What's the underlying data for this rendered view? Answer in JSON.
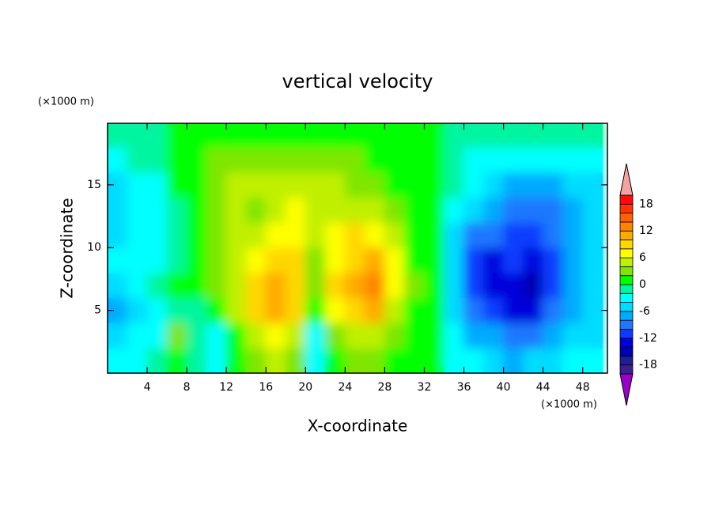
{
  "chart_data": {
    "type": "contour",
    "title": "vertical velocity",
    "x_label": "X-coordinate",
    "y_label": "Z-coordinate",
    "x_unit": "(×1000 m)",
    "y_unit": "(×1000 m)",
    "xlim": [
      0,
      50.5
    ],
    "ylim": [
      0,
      19.9
    ],
    "xticks": [
      4,
      8,
      12,
      16,
      20,
      24,
      28,
      32,
      36,
      40,
      44,
      48
    ],
    "yticks": [
      5,
      10,
      15
    ],
    "x": [
      1,
      3,
      5,
      7,
      9,
      11,
      13,
      15,
      17,
      19,
      21,
      23,
      25,
      27,
      29,
      31,
      33,
      35,
      37,
      39,
      41,
      43,
      45,
      47,
      49
    ],
    "y": [
      1,
      3,
      5,
      7,
      9,
      11,
      13,
      15,
      17,
      19
    ],
    "z": [
      [
        -3,
        -3,
        -1,
        1,
        -1,
        -3,
        1,
        3,
        5,
        3,
        -3,
        1,
        3,
        3,
        1,
        1,
        1,
        -3,
        -3,
        -5,
        -7,
        -5,
        -5,
        -3,
        -3
      ],
      [
        -5,
        -4,
        -3,
        3,
        -1,
        -3,
        1,
        5,
        7,
        5,
        -3,
        3,
        5,
        5,
        3,
        1,
        0,
        -3,
        -7,
        -7,
        -9,
        -9,
        -7,
        -5,
        -5
      ],
      [
        -7,
        -5,
        -3,
        -1,
        -1,
        1,
        5,
        9,
        11,
        9,
        1,
        7,
        9,
        11,
        5,
        1,
        0,
        -5,
        -9,
        -11,
        -13,
        -13,
        -9,
        -7,
        -5
      ],
      [
        -5,
        -3,
        -1,
        0,
        1,
        3,
        5,
        9,
        11,
        9,
        3,
        9,
        11,
        13,
        7,
        3,
        0,
        -5,
        -11,
        -13,
        -13,
        -15,
        -11,
        -7,
        -5
      ],
      [
        -3,
        -3,
        -3,
        -1,
        1,
        3,
        5,
        7,
        9,
        9,
        3,
        7,
        9,
        11,
        7,
        1,
        0,
        -5,
        -11,
        -13,
        -11,
        -13,
        -11,
        -7,
        -5
      ],
      [
        -5,
        -3,
        -3,
        -1,
        1,
        3,
        5,
        5,
        7,
        7,
        5,
        7,
        9,
        7,
        5,
        1,
        0,
        -5,
        -9,
        -9,
        -11,
        -11,
        -9,
        -7,
        -5
      ],
      [
        -5,
        -4,
        -3,
        -1,
        1,
        3,
        5,
        3,
        5,
        7,
        5,
        5,
        5,
        5,
        3,
        1,
        0,
        -3,
        -5,
        -7,
        -9,
        -9,
        -9,
        -7,
        -5
      ],
      [
        -5,
        -4,
        -3,
        0,
        1,
        3,
        5,
        5,
        5,
        5,
        5,
        5,
        3,
        3,
        1,
        1,
        0,
        -2,
        -4,
        -5,
        -7,
        -7,
        -7,
        -6,
        -5
      ],
      [
        -3,
        -2,
        -2,
        0,
        1,
        3,
        3,
        3,
        3,
        3,
        3,
        3,
        3,
        1,
        1,
        1,
        0,
        -2,
        -3,
        -3,
        -3,
        -4,
        -4,
        -3,
        -3
      ],
      [
        -2,
        -2,
        -2,
        0,
        1,
        1,
        1,
        1,
        1,
        1,
        1,
        1,
        1,
        1,
        1,
        1,
        0,
        -2,
        -2,
        -2,
        -2,
        -2,
        -2,
        -2,
        -2
      ]
    ],
    "levels": [
      -20,
      -18,
      -16,
      -14,
      -12,
      -10,
      -8,
      -6,
      -4,
      -2,
      0,
      2,
      4,
      6,
      8,
      10,
      12,
      14,
      16,
      18,
      20
    ],
    "colors": [
      "#9a00c8",
      "#3b1f8f",
      "#1e1e96",
      "#0000b4",
      "#0000dc",
      "#0a3cff",
      "#1e78ff",
      "#00aaff",
      "#00dcff",
      "#00ffff",
      "#00f5a0",
      "#00ff00",
      "#7ee600",
      "#c0f000",
      "#ffff00",
      "#ffd700",
      "#ffaa00",
      "#ff8200",
      "#ff6000",
      "#ff3200",
      "#ff0a0a",
      "#f4a3a3"
    ],
    "colorbar_ticks": [
      -18,
      -12,
      -6,
      0,
      6,
      12,
      18
    ]
  }
}
